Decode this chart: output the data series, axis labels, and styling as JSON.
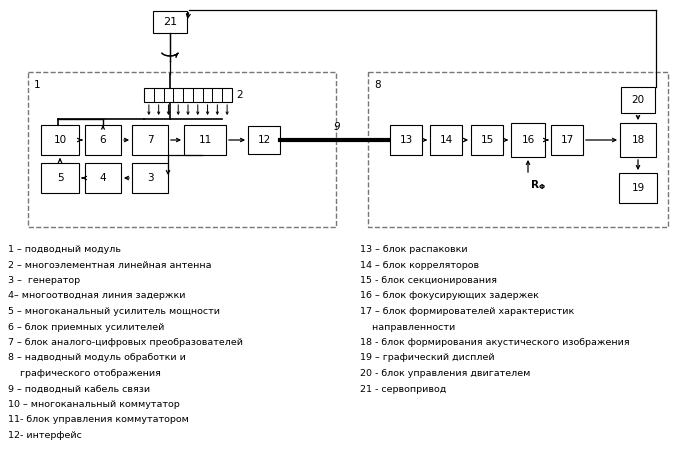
{
  "bg_color": "#ffffff",
  "text_color": "#000000",
  "legend_left": [
    "1 – подводный модуль",
    "2 – многоэлементная линейная антенна",
    "3 –  генератор",
    "4– многоотводная линия задержки",
    "5 – многоканальный усилитель мощности",
    "6 – блок приемных усилителей",
    "7 – блок аналого-цифровых преобразователей",
    "8 – надводный модуль обработки и",
    "    графического отображения",
    "9 – подводный кабель связи",
    "10 – многоканальный коммутатор",
    "11- блок управления коммутатором",
    "12- интерфейс"
  ],
  "legend_right": [
    "13 – блок распаковки",
    "14 – блок корреляторов",
    "15 - блок секционирования",
    "16 – блок фокусирующих задержек",
    "17 – блок формирователей характеристик",
    "    направленности",
    "18 - блок формирования акустического изображения",
    "19 – графический дисплей",
    "20 - блок управления двигателем",
    "21 - сервопривод"
  ]
}
